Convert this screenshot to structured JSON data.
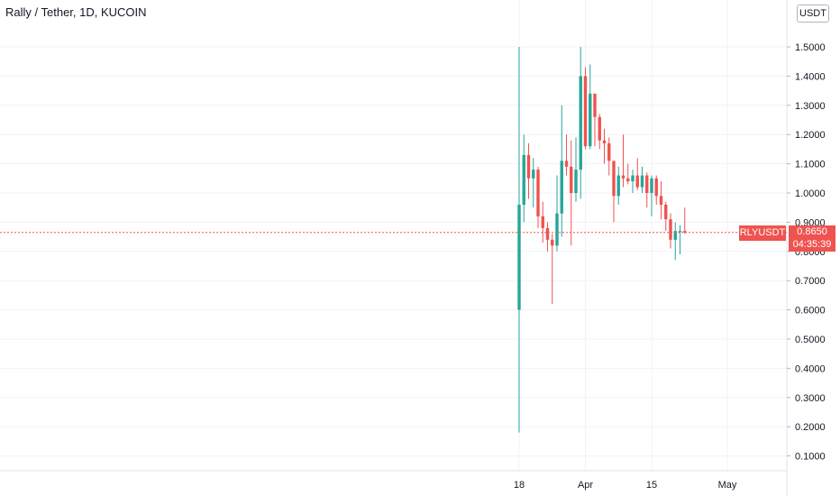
{
  "header": {
    "title": "Rally / Tether, 1D, KUCOIN",
    "currency": "USDT"
  },
  "last_price": {
    "symbol": "RLYUSDT",
    "price": "0.8650",
    "countdown": "04:35:39"
  },
  "colors": {
    "up": "#26a69a",
    "down": "#ef5350",
    "grid": "#f0f3fa",
    "axis_text": "#131722"
  },
  "chart_data": {
    "type": "candlestick",
    "title": "Rally / Tether, 1D, KUCOIN",
    "xlabel": "",
    "ylabel": "",
    "ylim": [
      0.05,
      1.6
    ],
    "y_ticks": [
      0.1,
      0.2,
      0.3,
      0.4,
      0.5,
      0.6,
      0.7,
      0.8,
      0.9,
      1.0,
      1.1,
      1.2,
      1.3,
      1.4,
      1.5
    ],
    "y_tick_labels": [
      "0.1000",
      "0.2000",
      "0.3000",
      "0.4000",
      "0.5000",
      "0.6000",
      "0.7000",
      "0.8000",
      "0.9000",
      "1.0000",
      "1.1000",
      "1.2000",
      "1.3000",
      "1.4000",
      "1.5000"
    ],
    "x_ticks": [
      {
        "date": "2021-03-18",
        "label": "18"
      },
      {
        "date": "2021-04-01",
        "label": "Apr"
      },
      {
        "date": "2021-04-15",
        "label": "15"
      },
      {
        "date": "2021-05-01",
        "label": "May"
      }
    ],
    "grid": true,
    "last_price": 0.865,
    "candles": [
      {
        "date": "2021-03-18",
        "o": 0.6,
        "h": 1.5,
        "l": 0.18,
        "c": 0.96
      },
      {
        "date": "2021-03-19",
        "o": 0.96,
        "h": 1.2,
        "l": 0.9,
        "c": 1.13
      },
      {
        "date": "2021-03-20",
        "o": 1.13,
        "h": 1.17,
        "l": 0.98,
        "c": 1.05
      },
      {
        "date": "2021-03-21",
        "o": 1.05,
        "h": 1.12,
        "l": 0.95,
        "c": 1.08
      },
      {
        "date": "2021-03-22",
        "o": 1.08,
        "h": 1.09,
        "l": 0.88,
        "c": 0.92
      },
      {
        "date": "2021-03-23",
        "o": 0.92,
        "h": 0.97,
        "l": 0.83,
        "c": 0.88
      },
      {
        "date": "2021-03-24",
        "o": 0.88,
        "h": 0.9,
        "l": 0.8,
        "c": 0.84
      },
      {
        "date": "2021-03-25",
        "o": 0.84,
        "h": 0.86,
        "l": 0.62,
        "c": 0.82
      },
      {
        "date": "2021-03-26",
        "o": 0.82,
        "h": 1.06,
        "l": 0.8,
        "c": 0.93
      },
      {
        "date": "2021-03-27",
        "o": 0.93,
        "h": 1.3,
        "l": 0.85,
        "c": 1.11
      },
      {
        "date": "2021-03-28",
        "o": 1.11,
        "h": 1.2,
        "l": 1.06,
        "c": 1.09
      },
      {
        "date": "2021-03-29",
        "o": 1.09,
        "h": 1.18,
        "l": 0.82,
        "c": 1.0
      },
      {
        "date": "2021-03-30",
        "o": 1.0,
        "h": 1.19,
        "l": 0.97,
        "c": 1.08
      },
      {
        "date": "2021-03-31",
        "o": 1.08,
        "h": 1.5,
        "l": 0.98,
        "c": 1.4
      },
      {
        "date": "2021-04-01",
        "o": 1.4,
        "h": 1.43,
        "l": 1.15,
        "c": 1.16
      },
      {
        "date": "2021-04-02",
        "o": 1.16,
        "h": 1.44,
        "l": 1.15,
        "c": 1.34
      },
      {
        "date": "2021-04-03",
        "o": 1.34,
        "h": 1.34,
        "l": 1.16,
        "c": 1.26
      },
      {
        "date": "2021-04-04",
        "o": 1.26,
        "h": 1.27,
        "l": 1.15,
        "c": 1.18
      },
      {
        "date": "2021-04-05",
        "o": 1.18,
        "h": 1.22,
        "l": 1.1,
        "c": 1.17
      },
      {
        "date": "2021-04-06",
        "o": 1.17,
        "h": 1.19,
        "l": 1.06,
        "c": 1.11
      },
      {
        "date": "2021-04-07",
        "o": 1.11,
        "h": 1.11,
        "l": 0.9,
        "c": 0.99
      },
      {
        "date": "2021-04-08",
        "o": 0.99,
        "h": 1.09,
        "l": 0.96,
        "c": 1.06
      },
      {
        "date": "2021-04-09",
        "o": 1.06,
        "h": 1.2,
        "l": 1.02,
        "c": 1.05
      },
      {
        "date": "2021-04-10",
        "o": 1.05,
        "h": 1.1,
        "l": 1.03,
        "c": 1.04
      },
      {
        "date": "2021-04-11",
        "o": 1.04,
        "h": 1.08,
        "l": 1.0,
        "c": 1.06
      },
      {
        "date": "2021-04-12",
        "o": 1.06,
        "h": 1.12,
        "l": 1.01,
        "c": 1.02
      },
      {
        "date": "2021-04-13",
        "o": 1.02,
        "h": 1.09,
        "l": 1.0,
        "c": 1.06
      },
      {
        "date": "2021-04-14",
        "o": 1.06,
        "h": 1.07,
        "l": 0.95,
        "c": 1.0
      },
      {
        "date": "2021-04-15",
        "o": 1.0,
        "h": 1.06,
        "l": 0.92,
        "c": 1.05
      },
      {
        "date": "2021-04-16",
        "o": 1.05,
        "h": 1.06,
        "l": 0.96,
        "c": 0.99
      },
      {
        "date": "2021-04-17",
        "o": 0.99,
        "h": 1.04,
        "l": 0.91,
        "c": 0.96
      },
      {
        "date": "2021-04-18",
        "o": 0.96,
        "h": 0.97,
        "l": 0.87,
        "c": 0.91
      },
      {
        "date": "2021-04-19",
        "o": 0.91,
        "h": 0.93,
        "l": 0.81,
        "c": 0.84
      },
      {
        "date": "2021-04-20",
        "o": 0.84,
        "h": 0.9,
        "l": 0.77,
        "c": 0.87
      },
      {
        "date": "2021-04-21",
        "o": 0.87,
        "h": 0.89,
        "l": 0.79,
        "c": 0.87
      },
      {
        "date": "2021-04-22",
        "o": 0.87,
        "h": 0.95,
        "l": 0.86,
        "c": 0.865
      }
    ]
  }
}
